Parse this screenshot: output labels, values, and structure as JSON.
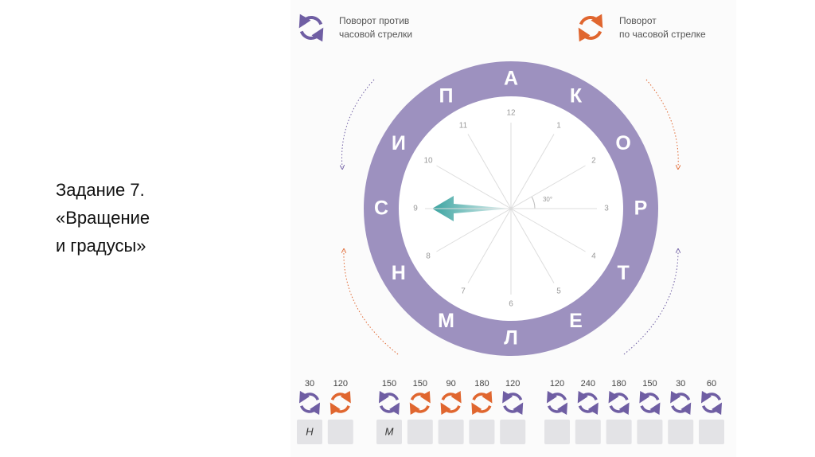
{
  "slide": {
    "lines": [
      "Задание 7.",
      "«Вращение",
      "и градусы»"
    ]
  },
  "legend": [
    {
      "direction": "ccw",
      "lines": [
        "Поворот против",
        "часовой стрелки"
      ]
    },
    {
      "direction": "cw",
      "lines": [
        "Поворот",
        "по часовой стрелке"
      ]
    }
  ],
  "ring_letters": [
    "А",
    "К",
    "О",
    "Р",
    "Т",
    "Е",
    "Л",
    "М",
    "Н",
    "С",
    "И",
    "П"
  ],
  "clock_numbers": [
    "12",
    "1",
    "2",
    "3",
    "4",
    "5",
    "6",
    "7",
    "8",
    "9",
    "10",
    "11"
  ],
  "angle_label": "30°",
  "tasks": [
    {
      "items": [
        {
          "degrees": "30",
          "direction": "ccw",
          "answer": "Н"
        },
        {
          "degrees": "120",
          "direction": "cw"
        }
      ]
    },
    {
      "items": [
        {
          "degrees": "150",
          "direction": "ccw",
          "answer": "М"
        },
        {
          "degrees": "150",
          "direction": "cw"
        },
        {
          "degrees": "90",
          "direction": "cw"
        },
        {
          "degrees": "180",
          "direction": "cw"
        },
        {
          "degrees": "120",
          "direction": "ccw"
        }
      ]
    },
    {
      "items": [
        {
          "degrees": "120",
          "direction": "ccw"
        },
        {
          "degrees": "240",
          "direction": "ccw"
        },
        {
          "degrees": "180",
          "direction": "ccw"
        },
        {
          "degrees": "150",
          "direction": "ccw"
        },
        {
          "degrees": "30",
          "direction": "ccw"
        },
        {
          "degrees": "60",
          "direction": "ccw"
        }
      ]
    }
  ]
}
